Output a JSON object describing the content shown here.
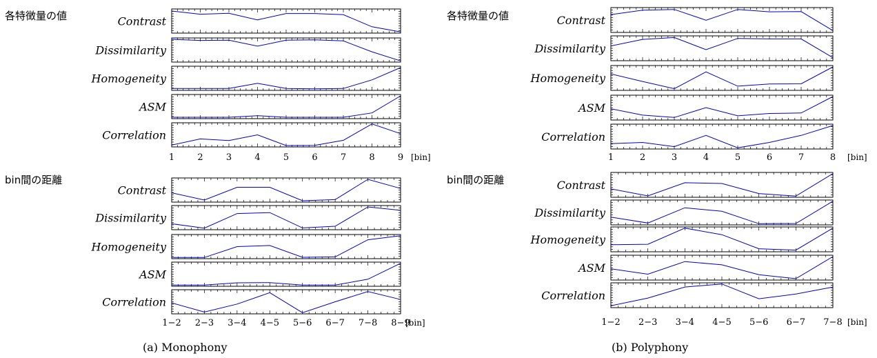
{
  "captions": {
    "a": "(a) Monophony",
    "b": "(b) Polyphony"
  },
  "section_titles": {
    "features": "各特徴量の値",
    "distance": "bin間の距離"
  },
  "feature_names": [
    "Contrast",
    "Dissimilarity",
    "Homogeneity",
    "ASM",
    "Correlation"
  ],
  "colors": {
    "series": "#0000cc",
    "frame": "#000000"
  },
  "chart_data": [
    {
      "id": "mono-features",
      "type": "line",
      "panel": "Monophony",
      "section": "各特徴量の値",
      "x": [
        "1",
        "2",
        "3",
        "4",
        "5",
        "6",
        "7",
        "8",
        "9"
      ],
      "xlabel": "[bin]",
      "ylim": [
        0,
        1
      ],
      "grid": false,
      "series": [
        {
          "name": "Contrast",
          "values": [
            0.94,
            0.8,
            0.84,
            0.55,
            0.83,
            0.83,
            0.78,
            0.25,
            0.02
          ]
        },
        {
          "name": "Dissimilarity",
          "values": [
            0.97,
            0.92,
            0.93,
            0.67,
            0.93,
            0.95,
            0.9,
            0.42,
            0.02
          ]
        },
        {
          "name": "Homogeneity",
          "values": [
            0.05,
            0.05,
            0.05,
            0.28,
            0.05,
            0.04,
            0.05,
            0.43,
            0.97
          ]
        },
        {
          "name": "ASM",
          "values": [
            0.03,
            0.03,
            0.03,
            0.1,
            0.03,
            0.03,
            0.03,
            0.22,
            0.97
          ]
        },
        {
          "name": "Correlation",
          "values": [
            0.05,
            0.32,
            0.25,
            0.5,
            0.03,
            0.04,
            0.26,
            0.98,
            0.55
          ]
        }
      ]
    },
    {
      "id": "mono-distance",
      "type": "line",
      "panel": "Monophony",
      "section": "bin間の距離",
      "x": [
        "1−2",
        "2−3",
        "3−4",
        "4−5",
        "5−6",
        "6−7",
        "7−8",
        "8−9"
      ],
      "xlabel": "[bin]",
      "ylim": [
        0,
        1
      ],
      "grid": false,
      "series": [
        {
          "name": "Contrast",
          "values": [
            0.38,
            0.06,
            0.62,
            0.62,
            0.03,
            0.08,
            0.97,
            0.57
          ]
        },
        {
          "name": "Dissimilarity",
          "values": [
            0.23,
            0.04,
            0.68,
            0.72,
            0.05,
            0.12,
            0.97,
            0.82
          ]
        },
        {
          "name": "Homogeneity",
          "values": [
            0.02,
            0.02,
            0.5,
            0.55,
            0.03,
            0.05,
            0.8,
            0.98
          ]
        },
        {
          "name": "ASM",
          "values": [
            0.02,
            0.02,
            0.12,
            0.13,
            0.02,
            0.02,
            0.28,
            0.98
          ]
        },
        {
          "name": "Correlation",
          "values": [
            0.45,
            0.05,
            0.4,
            0.9,
            0.02,
            0.5,
            0.95,
            0.6
          ]
        }
      ]
    },
    {
      "id": "poly-features",
      "type": "line",
      "panel": "Polyphony",
      "section": "各特徴量の値",
      "x": [
        "1",
        "2",
        "3",
        "4",
        "5",
        "6",
        "7",
        "8"
      ],
      "xlabel": "[bin]",
      "ylim": [
        0,
        1
      ],
      "grid": false,
      "series": [
        {
          "name": "Contrast",
          "values": [
            0.73,
            0.92,
            0.95,
            0.49,
            0.95,
            0.85,
            0.86,
            0.05
          ]
        },
        {
          "name": "Dissimilarity",
          "values": [
            0.6,
            0.88,
            0.96,
            0.44,
            0.92,
            0.9,
            0.9,
            0.1
          ]
        },
        {
          "name": "Homogeneity",
          "values": [
            0.67,
            0.35,
            0.04,
            0.76,
            0.15,
            0.24,
            0.25,
            0.97
          ]
        },
        {
          "name": "ASM",
          "values": [
            0.45,
            0.18,
            0.08,
            0.5,
            0.15,
            0.25,
            0.27,
            0.97
          ]
        },
        {
          "name": "Correlation",
          "values": [
            0.2,
            0.25,
            0.07,
            0.55,
            0.02,
            0.25,
            0.55,
            0.97
          ]
        }
      ]
    },
    {
      "id": "poly-distance",
      "type": "line",
      "panel": "Polyphony",
      "section": "bin間の距離",
      "x": [
        "1−2",
        "2−3",
        "3−4",
        "4−5",
        "5−6",
        "6−7",
        "7−8"
      ],
      "xlabel": "[bin]",
      "ylim": [
        0,
        1
      ],
      "grid": false,
      "series": [
        {
          "name": "Contrast",
          "values": [
            0.33,
            0.03,
            0.59,
            0.56,
            0.13,
            0.02,
            0.98
          ]
        },
        {
          "name": "Dissimilarity",
          "values": [
            0.3,
            0.05,
            0.7,
            0.55,
            0.02,
            0.03,
            0.98
          ]
        },
        {
          "name": "Homogeneity",
          "values": [
            0.27,
            0.29,
            0.98,
            0.7,
            0.1,
            0.04,
            0.98
          ]
        },
        {
          "name": "ASM",
          "values": [
            0.45,
            0.22,
            0.76,
            0.62,
            0.2,
            0.03,
            0.97
          ]
        },
        {
          "name": "Correlation",
          "values": [
            0.05,
            0.38,
            0.85,
            0.98,
            0.35,
            0.55,
            0.85
          ]
        }
      ]
    }
  ]
}
